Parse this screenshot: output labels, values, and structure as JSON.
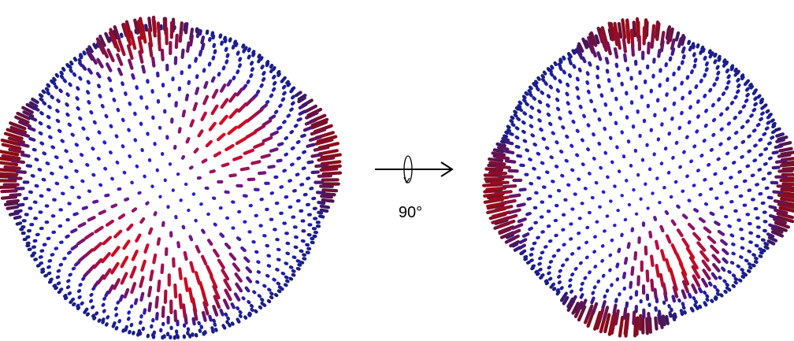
{
  "rotation_label": "90°"
}
